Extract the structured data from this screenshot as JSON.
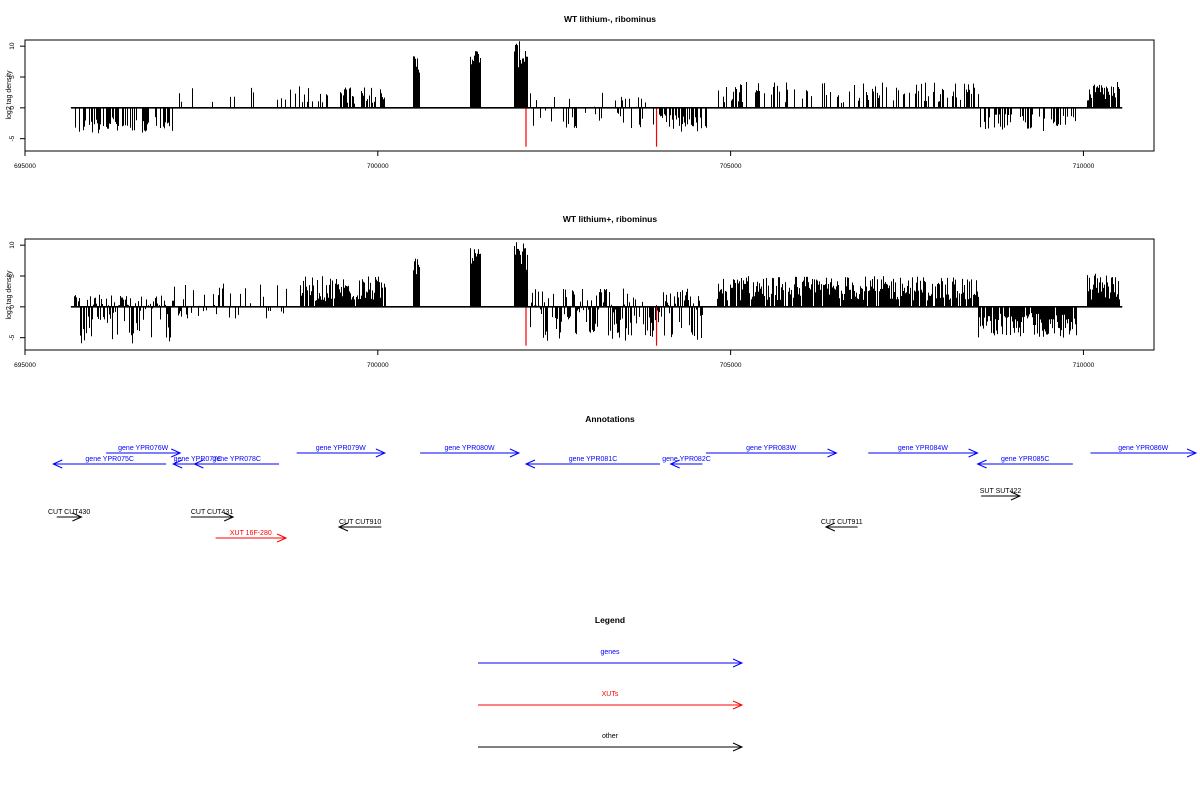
{
  "chart_data": [
    {
      "type": "bar",
      "title": "WT lithium-, ribominus",
      "ylabel": "log2 tag density",
      "xlim": [
        695000,
        711000
      ],
      "ylim": [
        -7,
        11
      ],
      "xticks": [
        695000,
        700000,
        705000,
        710000
      ],
      "yticks": [
        -5,
        0,
        5,
        10
      ],
      "baseline": {
        "from": 695650,
        "to": 710550
      },
      "grid": false,
      "legend": "none",
      "colors": {
        "bars": "#000000",
        "highlight": "#ff0000"
      },
      "highlights": [
        {
          "x": 702100,
          "y": -6.3
        },
        {
          "x": 703950,
          "y": -6.3
        }
      ],
      "segments": [
        {
          "from": 695700,
          "to": 697100,
          "min": -4.2,
          "max": -1.5,
          "density": 0.55
        },
        {
          "from": 697100,
          "to": 700100,
          "min": 0.6,
          "max": 3.5,
          "density": 0.12
        },
        {
          "from": 698900,
          "to": 700100,
          "min": 0.8,
          "max": 3.4,
          "density": 0.35
        },
        {
          "from": 700500,
          "to": 700580,
          "min": 5.0,
          "max": 8.8,
          "density": 1.0
        },
        {
          "from": 701300,
          "to": 701450,
          "min": 7.0,
          "max": 9.6,
          "density": 1.0
        },
        {
          "from": 701930,
          "to": 702120,
          "min": 6.5,
          "max": 10.8,
          "density": 1.0
        },
        {
          "from": 702150,
          "to": 703800,
          "min": -3.5,
          "max": 2.5,
          "density": 0.3
        },
        {
          "from": 703900,
          "to": 704650,
          "min": -4.0,
          "max": -1.0,
          "density": 0.6
        },
        {
          "from": 704800,
          "to": 708500,
          "min": 0.8,
          "max": 4.2,
          "density": 0.35
        },
        {
          "from": 708500,
          "to": 709900,
          "min": -3.8,
          "max": -1.0,
          "density": 0.4
        },
        {
          "from": 710050,
          "to": 710500,
          "min": 1.0,
          "max": 4.2,
          "density": 0.9
        }
      ]
    },
    {
      "type": "bar",
      "title": "WT lithium+, ribominus",
      "ylabel": "log2 tag density",
      "xlim": [
        695000,
        711000
      ],
      "ylim": [
        -7,
        11
      ],
      "xticks": [
        695000,
        700000,
        705000,
        710000
      ],
      "yticks": [
        -5,
        0,
        5,
        10
      ],
      "baseline": {
        "from": 695650,
        "to": 710550
      },
      "grid": false,
      "legend": "none",
      "colors": {
        "bars": "#000000",
        "highlight": "#ff0000"
      },
      "highlights": [
        {
          "x": 702100,
          "y": -6.3
        },
        {
          "x": 703950,
          "y": -6.3
        }
      ],
      "segments": [
        {
          "from": 695700,
          "to": 697100,
          "min": -6.0,
          "max": 2.0,
          "density": 0.95
        },
        {
          "from": 697100,
          "to": 698800,
          "min": -2.0,
          "max": 4.0,
          "density": 0.3
        },
        {
          "from": 698900,
          "to": 700100,
          "min": 0.8,
          "max": 5.0,
          "density": 0.9
        },
        {
          "from": 700500,
          "to": 700580,
          "min": 5.0,
          "max": 8.6,
          "density": 1.0
        },
        {
          "from": 701300,
          "to": 701450,
          "min": 7.0,
          "max": 9.5,
          "density": 1.0
        },
        {
          "from": 701930,
          "to": 702120,
          "min": 6.0,
          "max": 10.5,
          "density": 1.0
        },
        {
          "from": 702150,
          "to": 704600,
          "min": -5.5,
          "max": 3.0,
          "density": 0.9
        },
        {
          "from": 704800,
          "to": 708500,
          "min": 1.0,
          "max": 5.0,
          "density": 0.9
        },
        {
          "from": 708500,
          "to": 709900,
          "min": -5.0,
          "max": -1.0,
          "density": 0.9
        },
        {
          "from": 710050,
          "to": 710500,
          "min": 1.0,
          "max": 5.4,
          "density": 1.0
        }
      ]
    }
  ],
  "annotations": {
    "title": "Annotations",
    "xlim": [
      695000,
      711000
    ],
    "features": [
      {
        "label": "gene YPR076W",
        "start": 696150,
        "end": 697200,
        "strand": "+",
        "lane": 0,
        "kind": "gene"
      },
      {
        "label": "gene YPR075C",
        "start": 695400,
        "end": 697000,
        "strand": "-",
        "lane": 1,
        "kind": "gene"
      },
      {
        "label": "gene YPR077C",
        "start": 697100,
        "end": 697800,
        "strand": "-",
        "lane": 1,
        "kind": "gene"
      },
      {
        "label": "gene YPR078C",
        "start": 697400,
        "end": 698600,
        "strand": "-",
        "lane": 1,
        "kind": "gene"
      },
      {
        "label": "gene YPR079W",
        "start": 698850,
        "end": 700100,
        "strand": "+",
        "lane": 0,
        "kind": "gene"
      },
      {
        "label": "gene YPR080W",
        "start": 700600,
        "end": 702000,
        "strand": "+",
        "lane": 0,
        "kind": "gene"
      },
      {
        "label": "gene YPR081C",
        "start": 702100,
        "end": 704000,
        "strand": "-",
        "lane": 1,
        "kind": "gene"
      },
      {
        "label": "gene YPR082C",
        "start": 704150,
        "end": 704600,
        "strand": "-",
        "lane": 1,
        "kind": "gene"
      },
      {
        "label": "gene YPR083W",
        "start": 704650,
        "end": 706500,
        "strand": "+",
        "lane": 0,
        "kind": "gene"
      },
      {
        "label": "gene YPR084W",
        "start": 706950,
        "end": 708500,
        "strand": "+",
        "lane": 0,
        "kind": "gene"
      },
      {
        "label": "gene YPR085C",
        "start": 708500,
        "end": 709850,
        "strand": "-",
        "lane": 1,
        "kind": "gene"
      },
      {
        "label": "gene YPR086W",
        "start": 710100,
        "end": 711600,
        "strand": "+",
        "lane": 0,
        "kind": "gene"
      },
      {
        "label": "CUT CUT430",
        "start": 695450,
        "end": 695800,
        "strand": "+",
        "lane": 3,
        "kind": "other"
      },
      {
        "label": "CUT CUT431",
        "start": 697350,
        "end": 697950,
        "strand": "+",
        "lane": 3,
        "kind": "other"
      },
      {
        "label": "CUT CUT910",
        "start": 699450,
        "end": 700050,
        "strand": "-",
        "lane": 4,
        "kind": "other"
      },
      {
        "label": "CUT CUT911",
        "start": 706350,
        "end": 706800,
        "strand": "-",
        "lane": 4,
        "kind": "other"
      },
      {
        "label": "SUT SUT422",
        "start": 708550,
        "end": 709100,
        "strand": "+",
        "lane": 2,
        "kind": "other"
      },
      {
        "label": "XUT 16F-280",
        "start": 697700,
        "end": 698700,
        "strand": "+",
        "lane": 5,
        "kind": "xut"
      }
    ]
  },
  "legend": {
    "title": "Legend",
    "items": [
      {
        "label": "genes",
        "color": "#0000ff"
      },
      {
        "label": "XUTs",
        "color": "#ff0000"
      },
      {
        "label": "other",
        "color": "#000000"
      }
    ]
  },
  "colors": {
    "gene": "#0000ff",
    "xut": "#ff0000",
    "other": "#000000"
  }
}
